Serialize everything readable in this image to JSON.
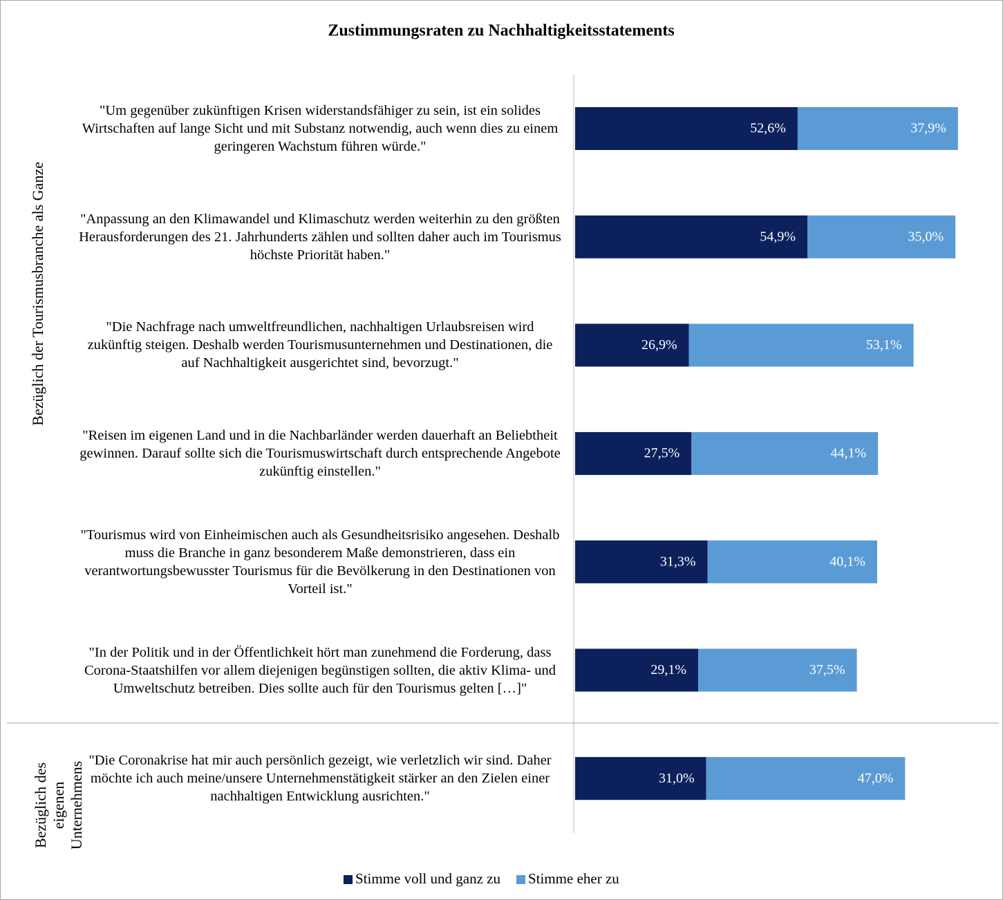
{
  "chart_data": {
    "type": "stacked_barh",
    "title": "Zustimmungsraten zu Nachhaltigkeitsstatements",
    "group_labels": [
      "Bezüglich der Tourismusbranche als Ganze",
      "Bezüglich des eigenen Unternehmens"
    ],
    "categories": [
      "\"Um gegenüber zukünftigen Krisen widerstandsfähiger zu sein, ist ein solides Wirtschaften auf lange Sicht und mit Substanz notwendig, auch wenn dies zu einem geringeren Wachstum führen würde.\"",
      "\"Anpassung an den Klimawandel und Klimaschutz werden weiterhin zu den größten Herausforderungen des 21. Jahrhunderts zählen und sollten daher auch im Tourismus höchste Priorität haben.\"",
      "\"Die Nachfrage nach umweltfreundlichen, nachhaltigen Urlaubsreisen wird zukünftig steigen. Deshalb werden Tourismusunternehmen und Destinationen, die auf Nachhaltigkeit ausgerichtet sind, bevorzugt.\"",
      "\"Reisen im eigenen Land und in die Nachbarländer werden dauerhaft an Beliebtheit gewinnen. Darauf sollte sich die Tourismuswirtschaft durch entsprechende Angebote zukünftig einstellen.\"",
      "\"Tourismus wird von Einheimischen auch als Gesundheitsrisiko angesehen. Deshalb muss die Branche in ganz besonderem Maße demonstrieren, dass ein verantwortungsbewusster Tourismus für die Bevölkerung in den Destinationen von Vorteil ist.\"",
      "\"In der Politik und in der Öffentlichkeit hört man zunehmend die Forderung, dass Corona-Staatshilfen vor allem diejenigen begünstigen sollten, die aktiv Klima- und Umweltschutz betreiben. Dies sollte auch für den Tourismus gelten […]\"",
      "\"Die Coronakrise hat mir auch persönlich gezeigt, wie verletzlich wir sind. Daher möchte ich auch meine/unsere Unternehmenstätigkeit stärker an den Zielen einer nachhaltigen Entwicklung ausrichten.\""
    ],
    "series": [
      {
        "name": "Stimme voll und ganz zu",
        "color": "#0c215c",
        "values": [
          52.6,
          54.9,
          26.9,
          27.5,
          31.3,
          29.1,
          31.0
        ],
        "value_labels": [
          "52,6%",
          "54,9%",
          "26,9%",
          "27,5%",
          "31,3%",
          "29,1%",
          "31,0%"
        ]
      },
      {
        "name": "Stimme eher zu",
        "color": "#5b9bd5",
        "values": [
          37.9,
          35.0,
          53.1,
          44.1,
          40.1,
          37.5,
          47.0
        ],
        "value_labels": [
          "37,9%",
          "35,0%",
          "53,1%",
          "44,1%",
          "40,1%",
          "37,5%",
          "47,0%"
        ]
      }
    ],
    "xlim": [
      0,
      100
    ],
    "legend": "bottom"
  }
}
